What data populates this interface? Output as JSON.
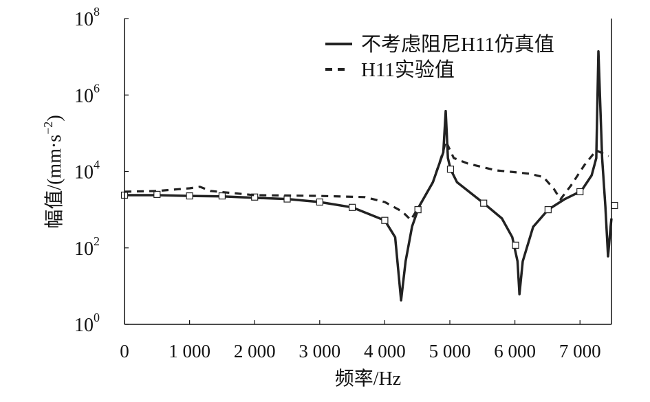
{
  "chart_data": {
    "type": "line",
    "title": "",
    "xlabel": "频率/Hz",
    "ylabel": "幅值/(mm·s",
    "ylabel_sup": "−2",
    "ylabel_close": ")",
    "xlim": [
      0,
      7484
    ],
    "ylim_log10": [
      0,
      8
    ],
    "yscale": "log",
    "xticks": [
      0,
      1000,
      2000,
      3000,
      4000,
      5000,
      6000,
      7000
    ],
    "xtick_labels": [
      "0",
      "1 000",
      "2 000",
      "3 000",
      "4 000",
      "5 000",
      "6 000",
      "7 000"
    ],
    "yticks_log10": [
      0,
      2,
      4,
      6,
      8
    ],
    "ytick_base": "10",
    "ytick_exps": [
      "0",
      "2",
      "4",
      "6",
      "8"
    ],
    "legend_position": "top-right",
    "series": [
      {
        "name": "不考虑阻尼H11仿真值",
        "style": "solid",
        "points_log10": [
          [
            0,
            3.38
          ],
          [
            500,
            3.38
          ],
          [
            1000,
            3.36
          ],
          [
            1500,
            3.35
          ],
          [
            2000,
            3.31
          ],
          [
            2500,
            3.28
          ],
          [
            3000,
            3.2
          ],
          [
            3500,
            3.06
          ],
          [
            4000,
            2.72
          ],
          [
            4160,
            2.28
          ],
          [
            4250,
            0.63
          ],
          [
            4320,
            1.65
          ],
          [
            4420,
            2.56
          ],
          [
            4530,
            3.09
          ],
          [
            4740,
            3.72
          ],
          [
            4900,
            4.5
          ],
          [
            4937,
            5.58
          ],
          [
            4970,
            4.35
          ],
          [
            5010,
            4.06
          ],
          [
            5110,
            3.72
          ],
          [
            5520,
            3.17
          ],
          [
            5800,
            2.77
          ],
          [
            5960,
            2.28
          ],
          [
            6040,
            1.65
          ],
          [
            6070,
            0.79
          ],
          [
            6120,
            1.65
          ],
          [
            6280,
            2.55
          ],
          [
            6510,
            3.0
          ],
          [
            6760,
            3.27
          ],
          [
            7020,
            3.49
          ],
          [
            7180,
            3.9
          ],
          [
            7250,
            4.35
          ],
          [
            7283,
            7.14
          ],
          [
            7340,
            4.35
          ],
          [
            7390,
            3.09
          ],
          [
            7431,
            1.78
          ],
          [
            7470,
            2.55
          ],
          [
            7484,
            2.77
          ]
        ],
        "markers_log10": [
          [
            0,
            3.38
          ],
          [
            500,
            3.4
          ],
          [
            1000,
            3.36
          ],
          [
            1500,
            3.36
          ],
          [
            2000,
            3.33
          ],
          [
            2500,
            3.28
          ],
          [
            3000,
            3.2
          ],
          [
            3500,
            3.06
          ],
          [
            4000,
            2.72
          ],
          [
            4510,
            3.0
          ],
          [
            5010,
            4.06
          ],
          [
            5520,
            3.17
          ],
          [
            6010,
            2.07
          ],
          [
            6510,
            3.0
          ],
          [
            7000,
            3.47
          ],
          [
            7530,
            3.11
          ]
        ]
      },
      {
        "name": "H11实验值",
        "style": "dashed",
        "points_log10": [
          [
            0,
            3.47
          ],
          [
            500,
            3.49
          ],
          [
            1000,
            3.56
          ],
          [
            1160,
            3.6
          ],
          [
            1320,
            3.49
          ],
          [
            2000,
            3.38
          ],
          [
            3000,
            3.36
          ],
          [
            3690,
            3.33
          ],
          [
            4000,
            3.2
          ],
          [
            4270,
            2.95
          ],
          [
            4400,
            2.73
          ],
          [
            4530,
            3.09
          ],
          [
            4740,
            3.72
          ],
          [
            4900,
            4.53
          ],
          [
            4937,
            4.8
          ],
          [
            5060,
            4.35
          ],
          [
            5270,
            4.21
          ],
          [
            5700,
            4.03
          ],
          [
            6230,
            3.94
          ],
          [
            6440,
            3.85
          ],
          [
            6600,
            3.54
          ],
          [
            6700,
            3.27
          ],
          [
            6860,
            3.63
          ],
          [
            7070,
            4.17
          ],
          [
            7250,
            4.55
          ],
          [
            7440,
            4.4
          ]
        ]
      }
    ]
  }
}
